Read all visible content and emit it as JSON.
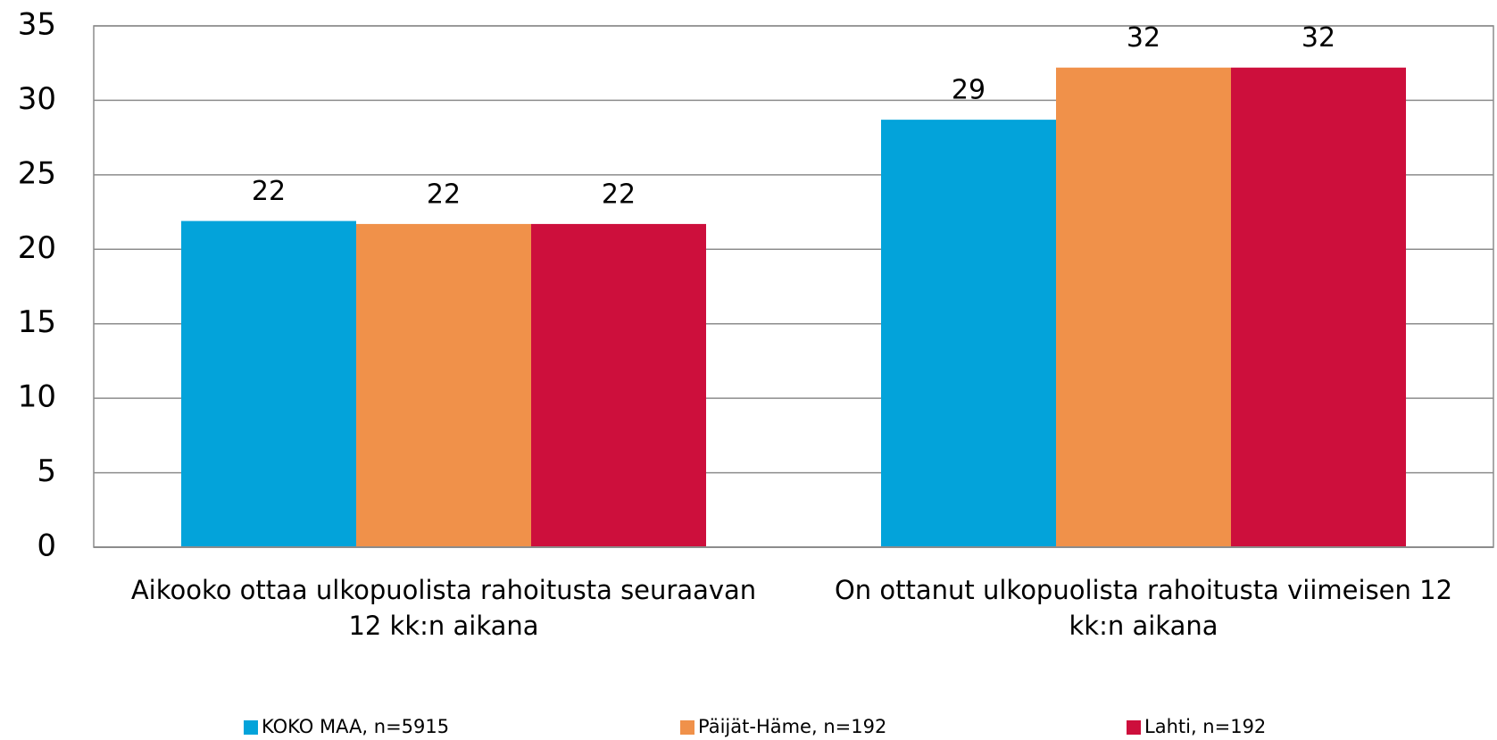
{
  "chart_data": {
    "type": "bar",
    "categories": [
      "Aikooko ottaa ulkopuolista rahoitusta seuraavan 12 kk:n aikana",
      "On ottanut ulkopuolista rahoitusta viimeisen 12 kk:n aikana"
    ],
    "series": [
      {
        "name": "KOKO MAA, n=5915",
        "color": "#03a3da",
        "values": [
          21.9,
          28.7
        ],
        "value_labels": [
          "22",
          "29"
        ]
      },
      {
        "name": "Päijät-Häme, n=192",
        "color": "#f0914a",
        "values": [
          21.7,
          32.2
        ],
        "value_labels": [
          "22",
          "32"
        ]
      },
      {
        "name": "Lahti, n=192",
        "color": "#cd0f3c",
        "values": [
          21.7,
          32.2
        ],
        "value_labels": [
          "22",
          "32"
        ]
      }
    ],
    "ylim": [
      0,
      35
    ],
    "yticks": [
      0,
      5,
      10,
      15,
      20,
      25,
      30,
      35
    ],
    "grid": true,
    "legend": "bottom"
  }
}
